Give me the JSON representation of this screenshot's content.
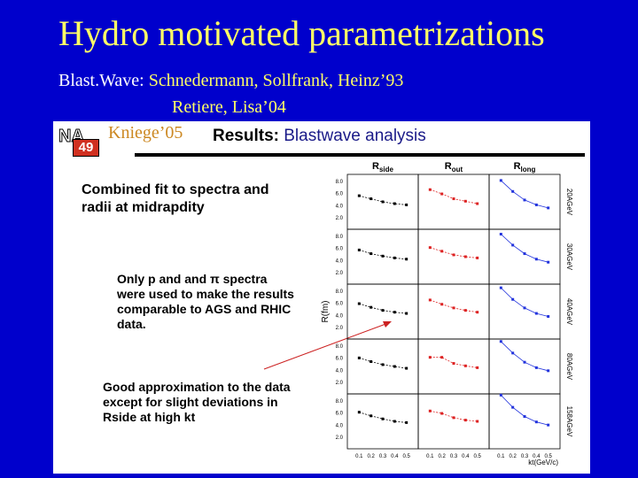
{
  "slide": {
    "title": "Hydro motivated parametrizations",
    "blastwave_label": "Blast.Wave:",
    "blastwave_authors": " Schnedermann, Sollfrank, Heinz’93",
    "blastwave_authors2": "Retiere, Lisa’04"
  },
  "figure": {
    "logo_top": "NA",
    "logo_bottom": "49",
    "citation": "Kniege’05",
    "title_a": "Results:",
    "title_b": " Blastwave analysis",
    "note1": "Combined fit to spectra and radii at midrapdity",
    "note2": "Only p and and π spectra were used to make the results comparable to AGS and RHIC data.",
    "note3": "Good approximation to the data except for slight deviations in Rside at high kt",
    "colors": {
      "side": "#000000",
      "out": "#dd2222",
      "long": "#2233dd"
    }
  },
  "chart_data": {
    "type": "scatter",
    "title": "",
    "columns": [
      "Rside",
      "Rout",
      "Rlong"
    ],
    "rows": [
      "20AGeV",
      "30AGeV",
      "40AGeV",
      "80AGeV",
      "158AGeV"
    ],
    "xlabel": "kt(GeV/c)",
    "ylabel": "R(fm)",
    "xlim": [
      0,
      0.6
    ],
    "ylim": [
      0,
      9
    ],
    "yticks": [
      "8.0",
      "6.0",
      "4.0",
      "2.0"
    ],
    "xticks": [
      "0.1",
      "0.2",
      "0.3",
      "0.4",
      "0.5"
    ],
    "x": [
      0.1,
      0.2,
      0.3,
      0.4,
      0.5
    ],
    "panels": [
      [
        [
          5.5,
          5.0,
          4.5,
          4.2,
          4.0
        ],
        [
          6.5,
          5.8,
          5.0,
          4.6,
          4.2
        ],
        [
          8.0,
          6.2,
          4.8,
          4.0,
          3.5
        ]
      ],
      [
        [
          5.6,
          5.0,
          4.6,
          4.3,
          4.1
        ],
        [
          6.0,
          5.4,
          4.8,
          4.5,
          4.3
        ],
        [
          8.2,
          6.4,
          5.0,
          4.1,
          3.6
        ]
      ],
      [
        [
          5.8,
          5.2,
          4.7,
          4.4,
          4.2
        ],
        [
          6.4,
          5.7,
          5.1,
          4.7,
          4.4
        ],
        [
          8.4,
          6.5,
          5.1,
          4.2,
          3.7
        ]
      ],
      [
        [
          5.9,
          5.3,
          4.8,
          4.5,
          4.2
        ],
        [
          6.0,
          6.0,
          5.0,
          4.6,
          4.3
        ],
        [
          8.6,
          6.7,
          5.2,
          4.3,
          3.8
        ]
      ],
      [
        [
          6.0,
          5.4,
          4.9,
          4.5,
          4.3
        ],
        [
          6.2,
          5.8,
          5.1,
          4.7,
          4.5
        ],
        [
          8.8,
          6.8,
          5.3,
          4.4,
          3.9
        ]
      ]
    ]
  }
}
